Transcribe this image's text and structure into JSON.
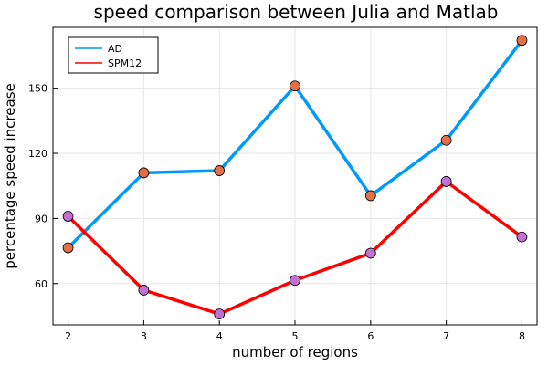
{
  "chart_data": {
    "type": "line",
    "title": "speed comparison between Julia and Matlab",
    "xlabel": "number of regions",
    "ylabel": "percentage speed increase",
    "x": [
      2,
      3,
      4,
      5,
      6,
      7,
      8
    ],
    "xlim": [
      1.8,
      8.2
    ],
    "ylim": [
      41,
      178
    ],
    "xticks": [
      2,
      3,
      4,
      5,
      6,
      7,
      8
    ],
    "yticks": [
      60,
      90,
      120,
      150
    ],
    "grid": true,
    "legend_position": "top-left",
    "series": [
      {
        "name": "AD",
        "color": "#009af9",
        "values": [
          76.5,
          111,
          112,
          151,
          100.5,
          126,
          172
        ]
      },
      {
        "name": "SPM12",
        "color": "#ff0000",
        "values": [
          91,
          57,
          46,
          61.5,
          74,
          107,
          81.5
        ]
      }
    ],
    "markers": {
      "AD": {
        "color": "#e26f46"
      },
      "SPM12": {
        "color": "#c271d2"
      }
    }
  }
}
